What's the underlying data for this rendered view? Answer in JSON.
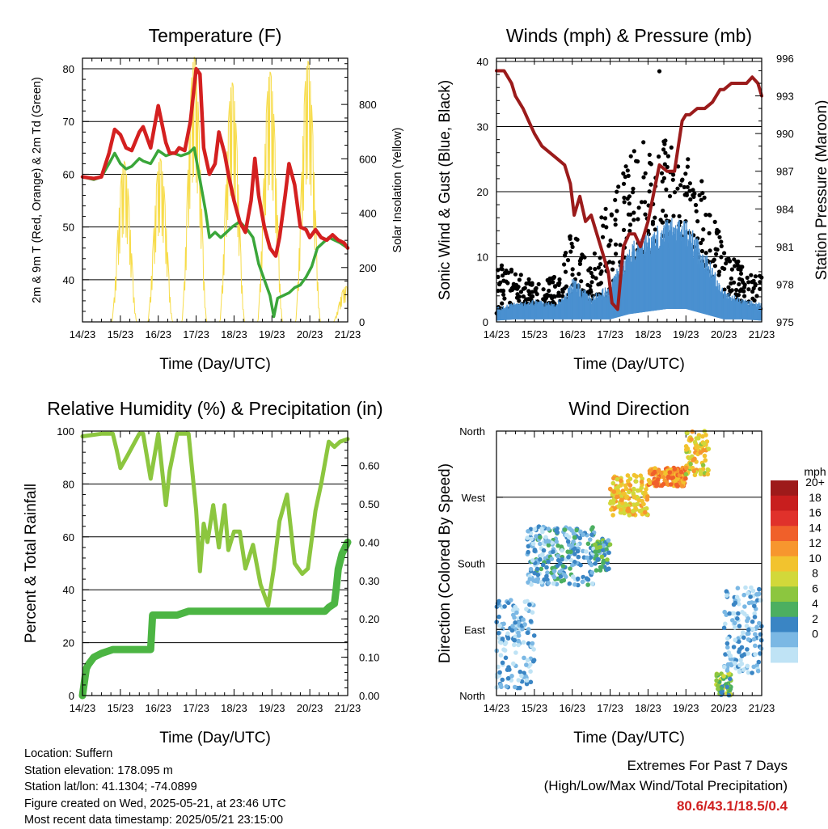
{
  "chart_data": [
    {
      "type": "line",
      "title": "Temperature (F)",
      "xlabel": "Time (Day/UTC)",
      "ylabel": "2m & 9m T (Red, Orange) & 2m Td (Green)",
      "ylabel_right": "Solar Insolation (Yellow)",
      "x_ticks": [
        "14/23",
        "15/23",
        "16/23",
        "17/23",
        "18/23",
        "19/23",
        "20/23",
        "21/23"
      ],
      "ylim": [
        32,
        82
      ],
      "y_ticks": [
        40,
        50,
        60,
        70,
        80
      ],
      "ylim_right": [
        0,
        970
      ],
      "y_ticks_right": [
        0,
        200,
        400,
        600,
        800
      ],
      "grid_y": [
        40,
        50,
        60,
        70,
        80,
        82
      ],
      "series": [
        {
          "name": "2m T",
          "color": "#d42020",
          "x": [
            0,
            0.3,
            0.5,
            0.7,
            0.85,
            1.0,
            1.15,
            1.3,
            1.5,
            1.6,
            1.8,
            2.0,
            2.2,
            2.3,
            2.45,
            2.55,
            2.7,
            2.85,
            3.0,
            3.1,
            3.2,
            3.35,
            3.5,
            3.6,
            3.75,
            3.85,
            4.0,
            4.15,
            4.3,
            4.45,
            4.55,
            4.65,
            4.8,
            4.95,
            5.1,
            5.2,
            5.35,
            5.45,
            5.6,
            5.75,
            5.9,
            6.0,
            6.15,
            6.3,
            6.45,
            6.6,
            6.75,
            6.9,
            7.0
          ],
          "y": [
            59.5,
            59.2,
            59.5,
            64,
            68.5,
            67.5,
            65,
            64.5,
            68,
            69,
            65,
            73,
            66,
            64,
            64,
            65,
            64.5,
            70,
            80,
            79,
            65,
            60,
            62,
            68,
            64,
            60,
            55,
            51,
            49,
            55,
            63,
            56,
            50,
            46,
            44.5,
            48,
            56,
            62,
            58,
            50,
            49.5,
            48,
            49.5,
            48,
            47.5,
            48.5,
            47.5,
            47,
            46
          ]
        },
        {
          "name": "2m Td",
          "color": "#3aa63a",
          "x": [
            0,
            0.3,
            0.5,
            0.7,
            0.85,
            1.0,
            1.15,
            1.3,
            1.5,
            1.6,
            1.8,
            2.0,
            2.2,
            2.4,
            2.6,
            2.8,
            2.95,
            3.05,
            3.15,
            3.25,
            3.35,
            3.5,
            3.65,
            3.8,
            3.95,
            4.15,
            4.35,
            4.5,
            4.65,
            4.8,
            4.95,
            5.05,
            5.15,
            5.3,
            5.45,
            5.6,
            5.75,
            5.9,
            6.05,
            6.2,
            6.35,
            6.5,
            6.65,
            6.8,
            7.0
          ],
          "y": [
            59.5,
            59,
            59.5,
            62,
            64,
            62,
            61,
            61.5,
            63,
            62.5,
            62,
            64.5,
            63.5,
            64,
            63.5,
            64,
            65,
            61,
            57,
            53,
            48,
            49,
            48,
            49,
            50,
            51,
            49.5,
            48,
            43,
            40,
            37,
            33,
            36.5,
            37,
            37.5,
            38.5,
            39,
            40.5,
            42.5,
            46,
            47,
            48,
            47.5,
            47,
            46
          ]
        }
      ],
      "insolation_peaks": [
        {
          "x": 1.1,
          "value": 590
        },
        {
          "x": 2.05,
          "value": 600
        },
        {
          "x": 2.95,
          "value": 975
        },
        {
          "x": 3.95,
          "value": 880
        },
        {
          "x": 4.95,
          "value": 920
        },
        {
          "x": 5.95,
          "value": 960
        },
        {
          "x": 6.95,
          "value": 130
        }
      ]
    },
    {
      "type": "scatter",
      "title": "Winds (mph) & Pressure (mb)",
      "xlabel": "Time (Day/UTC)",
      "ylabel": "Sonic Wind & Gust (Blue, Black)",
      "ylabel_right": "Station Pressure (Maroon)",
      "x_ticks": [
        "14/23",
        "15/23",
        "16/23",
        "17/23",
        "18/23",
        "19/23",
        "20/23",
        "21/23"
      ],
      "ylim": [
        0,
        40.5
      ],
      "y_ticks": [
        0,
        10,
        20,
        30,
        40
      ],
      "ylim_right": [
        975,
        996
      ],
      "y_ticks_right": [
        975,
        978,
        981,
        984,
        987,
        990,
        993,
        996
      ],
      "grid_y": [
        10,
        20,
        30,
        40
      ],
      "series": [
        {
          "name": "Station Pressure",
          "color": "#9b1b1b",
          "x": [
            0,
            0.2,
            0.4,
            0.5,
            0.7,
            0.85,
            1.0,
            1.2,
            1.4,
            1.6,
            1.8,
            1.95,
            2.05,
            2.2,
            2.35,
            2.5,
            2.75,
            2.95,
            3.05,
            3.2,
            3.35,
            3.5,
            3.65,
            3.8,
            4.0,
            4.2,
            4.3,
            4.5,
            4.7,
            4.9,
            5.0,
            5.1,
            5.3,
            5.5,
            5.7,
            5.9,
            6.0,
            6.2,
            6.4,
            6.6,
            6.75,
            6.9,
            7.0
          ],
          "y": [
            995,
            995,
            994,
            993,
            992,
            991,
            990,
            989,
            988.5,
            988,
            987.5,
            986,
            983.5,
            985,
            983,
            983.5,
            981,
            979,
            976.5,
            976,
            981,
            982,
            982,
            981,
            983,
            986,
            987.5,
            987,
            987,
            991,
            991.5,
            991.5,
            992,
            992,
            992.5,
            993.5,
            993.5,
            994,
            994,
            994,
            994.5,
            994,
            993
          ]
        },
        {
          "name": "Sonic Wind",
          "color": "#4a90d0",
          "envelope": [
            {
              "x": 0,
              "lo": 0.5,
              "hi": 2.5
            },
            {
              "x": 0.5,
              "lo": 1,
              "hi": 3
            },
            {
              "x": 1.0,
              "lo": 1,
              "hi": 3.5
            },
            {
              "x": 1.5,
              "lo": 1,
              "hi": 3
            },
            {
              "x": 1.8,
              "lo": 1,
              "hi": 4
            },
            {
              "x": 2.0,
              "lo": 1,
              "hi": 7
            },
            {
              "x": 2.5,
              "lo": 1,
              "hi": 4
            },
            {
              "x": 3.0,
              "lo": 1,
              "hi": 6
            },
            {
              "x": 3.5,
              "lo": 3,
              "hi": 12
            },
            {
              "x": 4.0,
              "lo": 4,
              "hi": 14
            },
            {
              "x": 4.5,
              "lo": 5,
              "hi": 16
            },
            {
              "x": 5.0,
              "lo": 5,
              "hi": 16
            },
            {
              "x": 5.5,
              "lo": 3,
              "hi": 11
            },
            {
              "x": 6.0,
              "lo": 1,
              "hi": 5
            },
            {
              "x": 6.5,
              "lo": 1,
              "hi": 3.5
            },
            {
              "x": 7.0,
              "lo": 0.5,
              "hi": 3
            }
          ]
        },
        {
          "name": "Gust",
          "color": "#000000",
          "envelope": [
            {
              "x": 0,
              "lo": 1,
              "hi": 9
            },
            {
              "x": 0.5,
              "lo": 1.5,
              "hi": 8
            },
            {
              "x": 1.0,
              "lo": 2,
              "hi": 6
            },
            {
              "x": 1.5,
              "lo": 2,
              "hi": 7
            },
            {
              "x": 1.8,
              "lo": 2,
              "hi": 12
            },
            {
              "x": 2.0,
              "lo": 2,
              "hi": 14
            },
            {
              "x": 2.5,
              "lo": 2,
              "hi": 9
            },
            {
              "x": 3.0,
              "lo": 2,
              "hi": 24
            },
            {
              "x": 3.5,
              "lo": 5,
              "hi": 25
            },
            {
              "x": 4.0,
              "lo": 7,
              "hi": 30
            },
            {
              "x": 4.5,
              "lo": 9,
              "hi": 28
            },
            {
              "x": 5.0,
              "lo": 8,
              "hi": 26
            },
            {
              "x": 5.5,
              "lo": 5,
              "hi": 22
            },
            {
              "x": 6.0,
              "lo": 2,
              "hi": 11
            },
            {
              "x": 6.5,
              "lo": 2,
              "hi": 9
            },
            {
              "x": 7.0,
              "lo": 1.5,
              "hi": 7
            }
          ],
          "max_gust": {
            "x": 4.3,
            "y": 38.5
          }
        }
      ]
    },
    {
      "type": "line",
      "title": "Relative Humidity (%) & Precipitation (in)",
      "xlabel": "Time (Day/UTC)",
      "ylabel": "Percent & Total Rainfall",
      "x_ticks": [
        "14/23",
        "15/23",
        "16/23",
        "17/23",
        "18/23",
        "19/23",
        "20/23",
        "21/23"
      ],
      "ylim": [
        0,
        100
      ],
      "y_ticks": [
        0,
        20,
        40,
        60,
        80,
        100
      ],
      "ylim_right": [
        0,
        0.69
      ],
      "y_ticks_right": [
        "0.00",
        "0.10",
        "0.20",
        "0.30",
        "0.40",
        "0.50",
        "0.60"
      ],
      "grid_y": [
        20,
        40,
        60,
        80
      ],
      "series": [
        {
          "name": "Relative Humidity",
          "color": "#8cc63f",
          "x": [
            0,
            0.5,
            0.8,
            0.9,
            1.0,
            1.2,
            1.5,
            1.6,
            1.8,
            2.0,
            2.2,
            2.3,
            2.5,
            2.8,
            3.0,
            3.1,
            3.2,
            3.3,
            3.45,
            3.6,
            3.75,
            3.85,
            4.0,
            4.15,
            4.3,
            4.5,
            4.7,
            4.9,
            5.05,
            5.2,
            5.4,
            5.6,
            5.8,
            5.95,
            6.15,
            6.3,
            6.5,
            6.65,
            6.8,
            7.0
          ],
          "y": [
            98,
            99,
            99,
            93,
            86,
            91,
            99,
            99,
            82,
            99,
            72,
            85,
            99,
            99,
            70,
            47,
            65,
            58,
            72,
            56,
            72,
            55,
            62,
            62,
            48,
            57,
            42,
            34,
            48,
            66,
            76,
            50,
            46,
            48,
            70,
            80,
            96,
            94,
            96,
            97
          ]
        },
        {
          "name": "Total Precipitation",
          "color": "#4cb543",
          "x": [
            0,
            0.1,
            0.15,
            0.3,
            0.5,
            0.8,
            1.0,
            1.5,
            1.8,
            1.85,
            2.0,
            2.5,
            2.8,
            3.5,
            4.0,
            5.0,
            6.0,
            6.4,
            6.5,
            6.65,
            6.7,
            6.75,
            6.85,
            7.0
          ],
          "y": [
            0,
            0.07,
            0.08,
            0.1,
            0.11,
            0.12,
            0.12,
            0.12,
            0.12,
            0.21,
            0.21,
            0.21,
            0.22,
            0.22,
            0.22,
            0.22,
            0.22,
            0.22,
            0.23,
            0.24,
            0.28,
            0.33,
            0.37,
            0.4
          ]
        }
      ]
    },
    {
      "type": "scatter",
      "title": "Wind Direction",
      "xlabel": "Time (Day/UTC)",
      "ylabel": "Direction (Colored By Speed)",
      "x_ticks": [
        "14/23",
        "15/23",
        "16/23",
        "17/23",
        "18/23",
        "19/23",
        "20/23",
        "21/23"
      ],
      "y_ticks": [
        "North",
        "East",
        "South",
        "West",
        "North"
      ],
      "colorbar": {
        "title": "mph",
        "labels": [
          "20+",
          "18",
          "16",
          "14",
          "12",
          "10",
          "8",
          "6",
          "4",
          "2",
          "0"
        ],
        "colors": [
          "#9e1a1a",
          "#c81e1e",
          "#e0312b",
          "#f0602a",
          "#f7962e",
          "#f2c32e",
          "#d2d83a",
          "#8cc63f",
          "#4caf60",
          "#3a85c4",
          "#7bb8e4",
          "#bfe3f5"
        ]
      },
      "clusters": [
        {
          "x0": 0.0,
          "x1": 1.0,
          "dir_lo": 10,
          "dir_hi": 130,
          "speed": 2
        },
        {
          "x0": 0.8,
          "x1": 2.6,
          "dir_lo": 150,
          "dir_hi": 230,
          "speed": 3
        },
        {
          "x0": 2.6,
          "x1": 3.0,
          "dir_lo": 170,
          "dir_hi": 215,
          "speed": 5
        },
        {
          "x0": 3.0,
          "x1": 4.0,
          "dir_lo": 245,
          "dir_hi": 300,
          "speed": 12
        },
        {
          "x0": 4.0,
          "x1": 5.0,
          "dir_lo": 285,
          "dir_hi": 310,
          "speed": 14
        },
        {
          "x0": 5.0,
          "x1": 5.6,
          "dir_lo": 300,
          "dir_hi": 360,
          "speed": 11
        },
        {
          "x0": 5.8,
          "x1": 6.2,
          "dir_lo": 0,
          "dir_hi": 30,
          "speed": 7
        },
        {
          "x0": 6.0,
          "x1": 7.0,
          "dir_lo": 30,
          "dir_hi": 150,
          "speed": 2
        }
      ]
    }
  ],
  "info": {
    "location": "Location: Suffern",
    "elevation": "Station elevation: 178.095 m",
    "latlon": "Station lat/lon: 41.1304; -74.0899",
    "created": "Figure created on Wed, 2025-05-21, at 23:46 UTC",
    "timestamp": "Most recent data timestamp: 2025/05/21 23:15:00"
  },
  "extremes": {
    "title": "Extremes For Past 7 Days",
    "subtitle": "(High/Low/Max Wind/Total Precipitation)",
    "values": "80.6/43.1/18.5/0.4"
  }
}
